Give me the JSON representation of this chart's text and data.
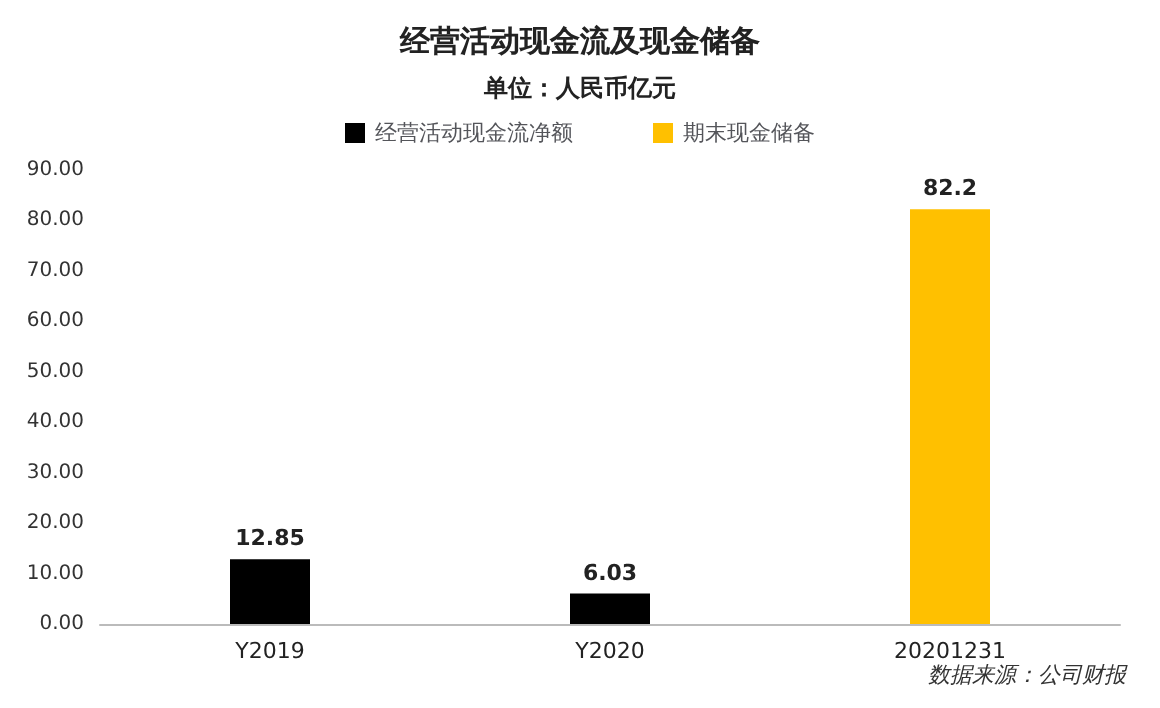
{
  "chart_data": {
    "type": "bar",
    "title": "经营活动现金流及现金储备",
    "subtitle": "单位：人民币亿元",
    "categories": [
      "Y2019",
      "Y2020",
      "20201231"
    ],
    "series": [
      {
        "name": "经营活动现金流净额",
        "color": "#000000",
        "values": [
          12.85,
          6.03,
          null
        ]
      },
      {
        "name": "期末现金储备",
        "color": "#ffc000",
        "values": [
          null,
          null,
          82.2
        ]
      }
    ],
    "ylim": [
      0,
      90
    ],
    "yticks": [
      {
        "value": 0,
        "label": "0.00"
      },
      {
        "value": 10,
        "label": "10.00"
      },
      {
        "value": 20,
        "label": "20.00"
      },
      {
        "value": 30,
        "label": "30.00"
      },
      {
        "value": 40,
        "label": "40.00"
      },
      {
        "value": 50,
        "label": "50.00"
      },
      {
        "value": 60,
        "label": "60.00"
      },
      {
        "value": 70,
        "label": "70.00"
      },
      {
        "value": 80,
        "label": "80.00"
      },
      {
        "value": 90,
        "label": "90.00"
      }
    ],
    "data_labels": true,
    "grid": false,
    "legend": "top",
    "annotations": [
      "数据来源：公司财报"
    ]
  }
}
